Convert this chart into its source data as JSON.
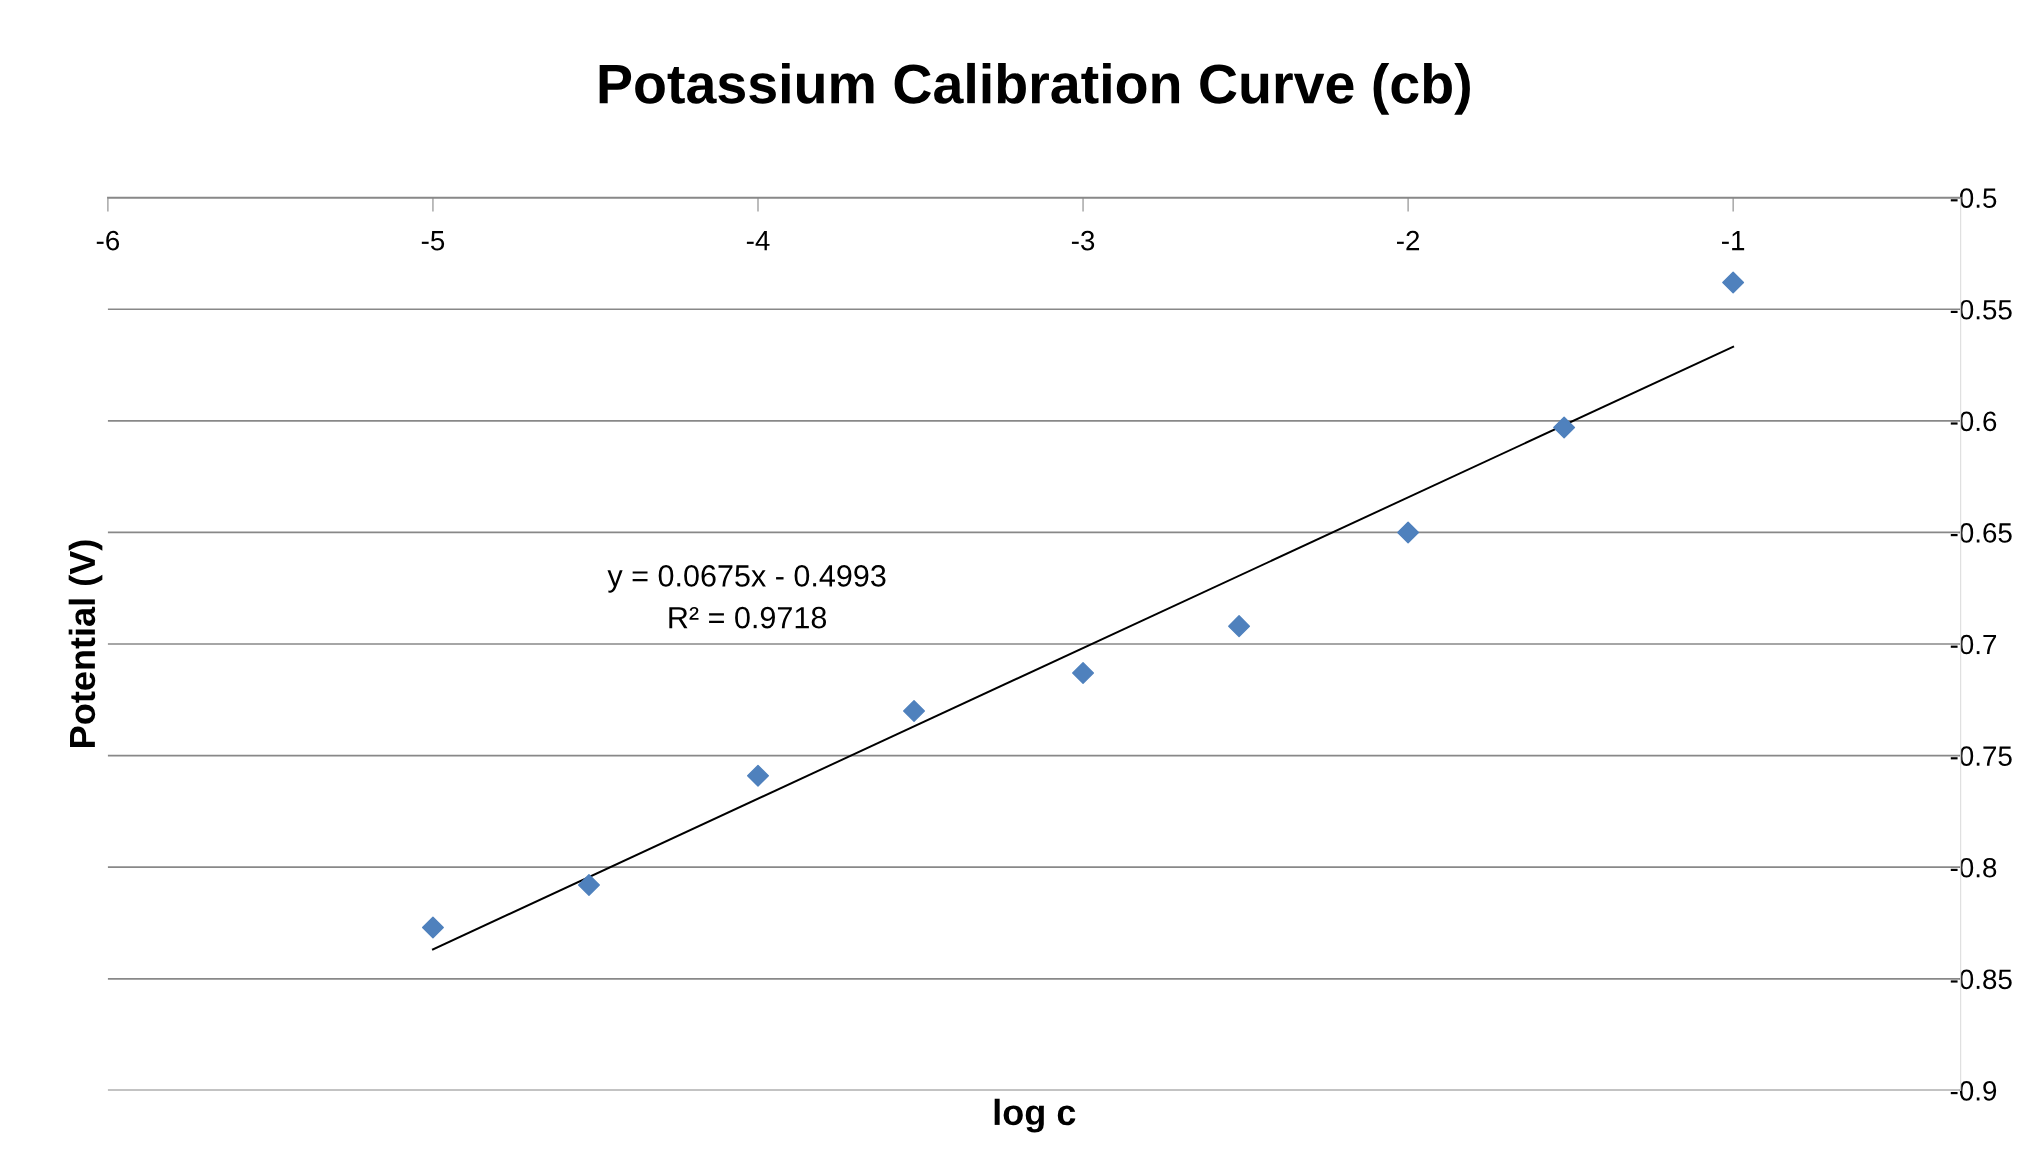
{
  "chart_data": {
    "type": "scatter",
    "title": "Potassium Calibration Curve (cb)",
    "xlabel": "log c",
    "ylabel": "Potential (V)",
    "series": [
      {
        "color": "#4f81bd",
        "marker": "diamond",
        "x": [
          -5,
          -4.52,
          -4,
          -3.52,
          -3,
          -2.52,
          -2,
          -1.52,
          -1
        ],
        "values": [
          -0.827,
          -0.808,
          -0.759,
          -0.73,
          -0.713,
          -0.692,
          -0.65,
          -0.603,
          -0.538
        ]
      },
      {
        "type": "line",
        "color": "#000000",
        "line_style": "solid",
        "marker": "none",
        "x": [
          -5,
          -1
        ],
        "values": [
          -0.8368,
          -0.5668
        ]
      }
    ],
    "annotations": [
      "y = 0.0675x - 0.4993\nR² = 0.9718"
    ],
    "xlim": [
      -6,
      -0.3
    ],
    "xticks": [
      -6,
      -5,
      -4,
      -3,
      -2,
      -1
    ],
    "ylim": [
      -0.9,
      -0.5
    ],
    "yticks": [
      -0.9,
      -0.85,
      -0.8,
      -0.75,
      -0.7,
      -0.65,
      -0.6,
      -0.55,
      -0.5
    ],
    "grid": "y",
    "legend": false
  }
}
